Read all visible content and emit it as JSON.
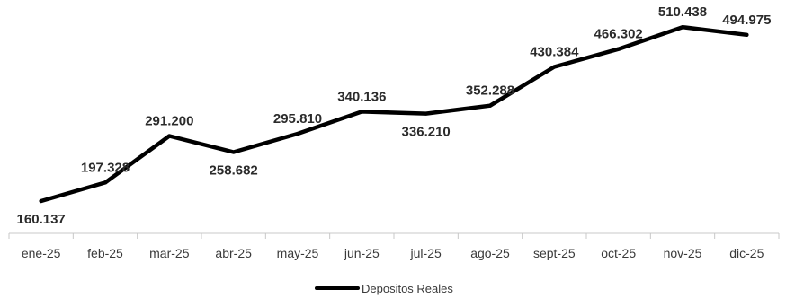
{
  "chart_data": {
    "type": "line",
    "categories": [
      "ene-25",
      "feb-25",
      "mar-25",
      "abr-25",
      "may-25",
      "jun-25",
      "jul-25",
      "ago-25",
      "sept-25",
      "oct-25",
      "nov-25",
      "dic-25"
    ],
    "series": [
      {
        "name": "Depositos Reales",
        "values": [
          160.137,
          197.328,
          291.2,
          258.682,
          295.81,
          340.136,
          336.21,
          352.288,
          430.384,
          466.302,
          510.438,
          494.975
        ],
        "labels": [
          "160.137",
          "197.328",
          "291.200",
          "258.682",
          "295.810",
          "340.136",
          "336.210",
          "352.288",
          "430.384",
          "466.302",
          "510.438",
          "494.975"
        ],
        "color": "#000000"
      }
    ],
    "grid": false,
    "legend": "bottom",
    "title": "",
    "xlabel": "",
    "ylabel": ""
  }
}
